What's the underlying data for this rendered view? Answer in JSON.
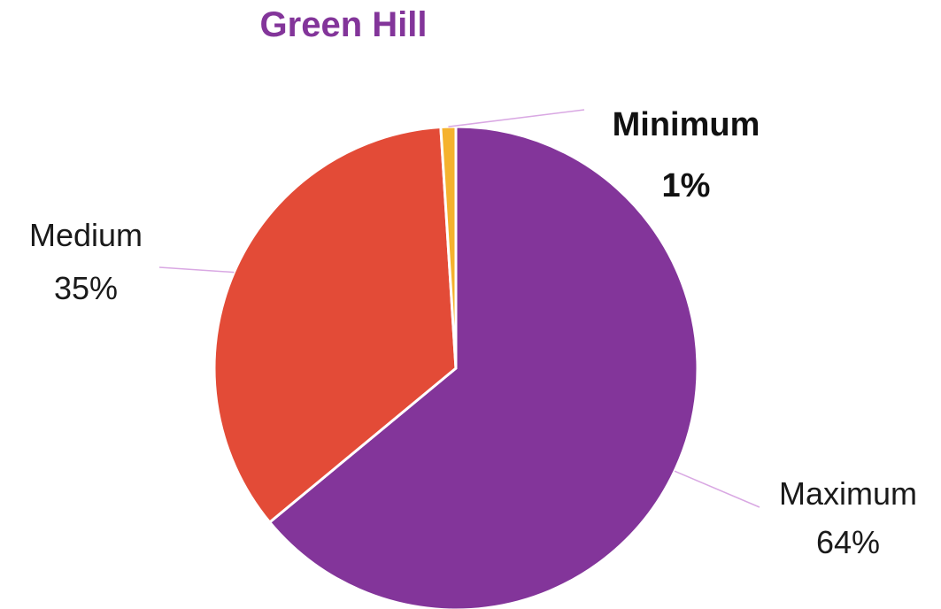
{
  "chart_data": {
    "type": "pie",
    "title": "Green Hill",
    "title_color": "#83359a",
    "slices": [
      {
        "label": "Maximum",
        "value": 64,
        "display": "64%",
        "color": "#83359a"
      },
      {
        "label": "Medium",
        "value": 35,
        "display": "35%",
        "color": "#e34b37"
      },
      {
        "label": "Minimum",
        "value": 1,
        "display": "1%",
        "color": "#f5b22e"
      }
    ],
    "leader_line_color": "#d9a8e3",
    "legend": "none"
  }
}
